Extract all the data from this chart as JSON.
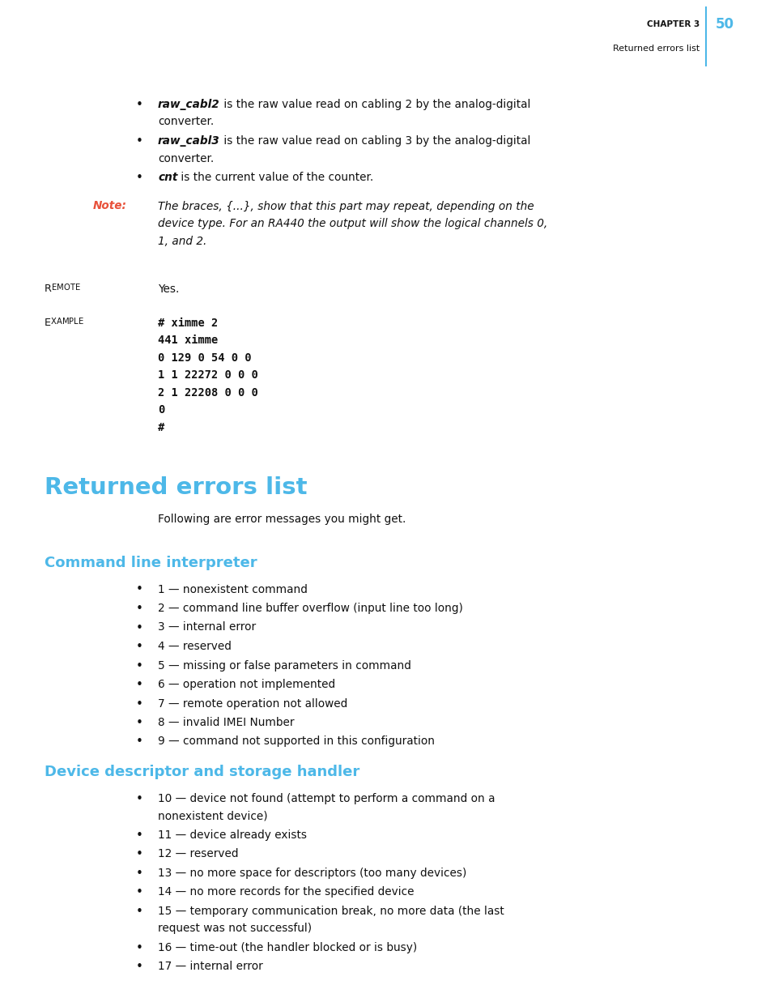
{
  "page_width": 9.35,
  "page_height": 12.16,
  "dpi": 100,
  "bg_color": "#ffffff",
  "header_chapter": "CHAPTER 3",
  "header_page": "50",
  "header_section": "Returned errors list",
  "header_line_color": "#4db8e8",
  "header_page_color": "#4db8e8",
  "note_label_color": "#e8513a",
  "section_title_color": "#4db8e8",
  "subsection_color": "#4db8e8",
  "bullet_items_top": [
    {
      "italic": "raw_cabl2",
      "normal": " is the raw value read on cabling 2 by the analog-digital\nconverter."
    },
    {
      "italic": "raw_cabl3",
      "normal": " is the raw value read on cabling 3 by the analog-digital\nconverter."
    },
    {
      "italic": "cnt",
      "normal": " is the current value of the counter."
    }
  ],
  "note_label": "Note:",
  "note_text": "The braces, {...}, show that this part may repeat, depending on the\ndevice type. For an RA440 the output will show the logical channels 0,\n1, and 2.",
  "remote_label": "Remote",
  "remote_value": "Yes.",
  "example_label": "Example",
  "example_code": "# ximme 2\n441 ximme\n0 129 0 54 0 0\n1 1 22272 0 0 0\n2 1 22208 0 0 0\n0\n#",
  "section_title": "Returned errors list",
  "section_intro": "Following are error messages you might get.",
  "subsection1_title": "Command line interpreter",
  "subsection1_items": [
    "1 — nonexistent command",
    "2 — command line buffer overflow (input line too long)",
    "3 — internal error",
    "4 — reserved",
    "5 — missing or false parameters in command",
    "6 — operation not implemented",
    "7 — remote operation not allowed",
    "8 — invalid IMEI Number",
    "9 — command not supported in this configuration"
  ],
  "subsection2_title": "Device descriptor and storage handler",
  "subsection2_items": [
    "10 — device not found (attempt to perform a command on a\nnonexistent device)",
    "11 — device already exists",
    "12 — reserved",
    "13 — no more space for descriptors (too many devices)",
    "14 — no more records for the specified device",
    "15 — temporary communication break, no more data (the last\nrequest was not successful)",
    "16 — time-out (the handler blocked or is busy)",
    "17 — internal error"
  ]
}
